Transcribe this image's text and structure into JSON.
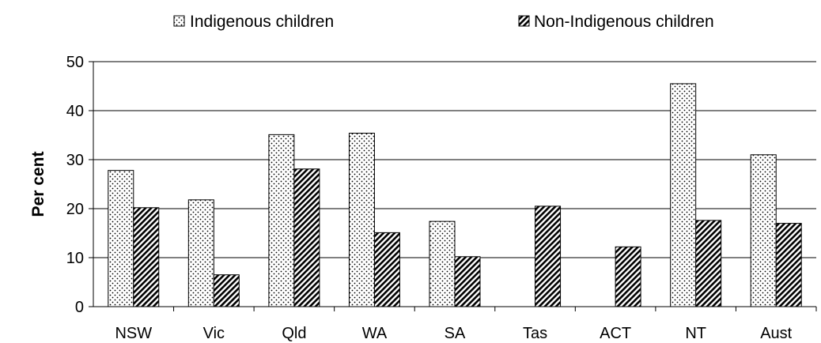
{
  "chart_data": {
    "type": "bar",
    "title": "",
    "xlabel": "",
    "ylabel": "Per cent",
    "ylim": [
      0,
      50
    ],
    "yticks": [
      0,
      10,
      20,
      30,
      40,
      50
    ],
    "grid": true,
    "legend_position": "top",
    "categories": [
      "NSW",
      "Vic",
      "Qld",
      "WA",
      "SA",
      "Tas",
      "ACT",
      "NT",
      "Aust"
    ],
    "series": [
      {
        "name": "Indigenous children",
        "pattern": "dotted",
        "values": [
          27.8,
          21.8,
          35.1,
          35.4,
          17.4,
          null,
          null,
          45.5,
          31.0
        ]
      },
      {
        "name": "Non-Indigenous children",
        "pattern": "diagonal-hatch",
        "values": [
          20.2,
          6.5,
          28.1,
          15.1,
          10.2,
          20.5,
          12.2,
          17.6,
          17.0
        ]
      }
    ],
    "colors": {
      "bar_fill": "#ffffff",
      "pattern_ink": "#000000",
      "gridline": "#000000"
    }
  }
}
